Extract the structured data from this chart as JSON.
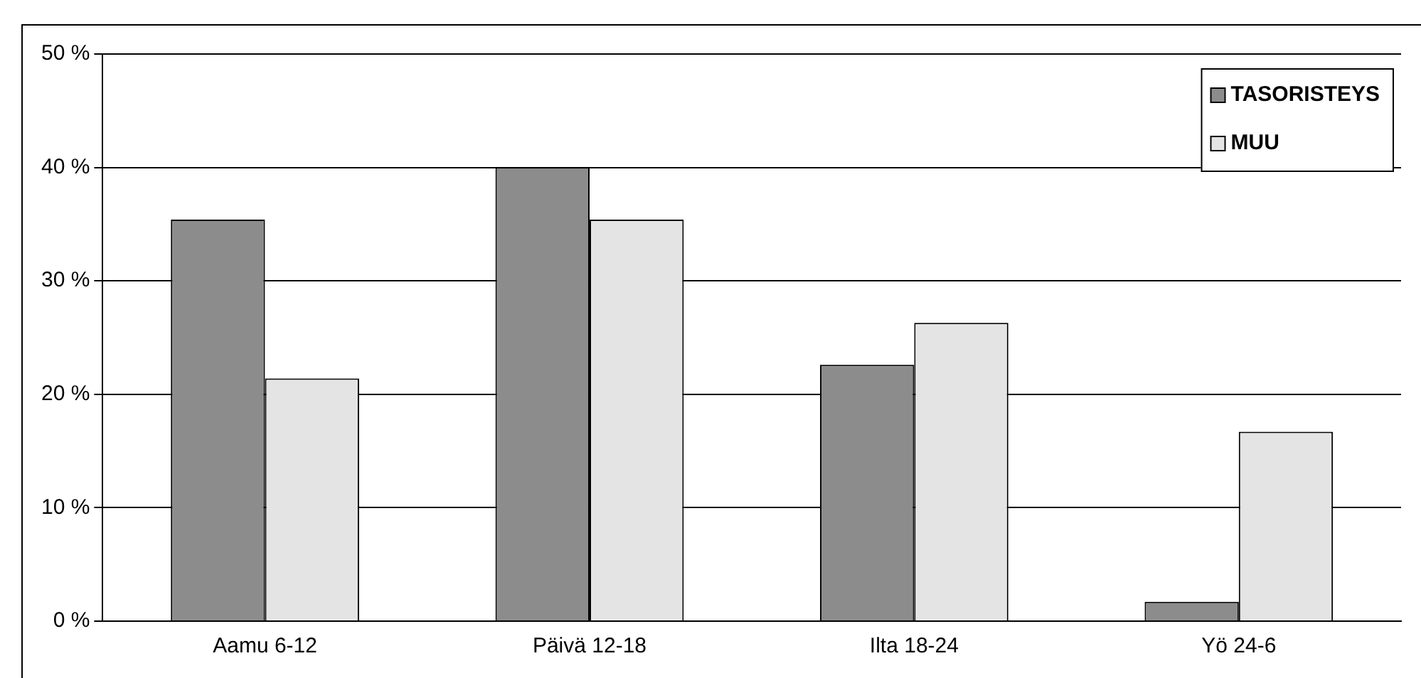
{
  "chart_data": {
    "type": "bar",
    "categories": [
      "Aamu 6-12",
      "Päivä 12-18",
      "Ilta 18-24",
      "Yö 24-6"
    ],
    "series": [
      {
        "name": "TASORISTEYS",
        "color": "#8c8c8c",
        "values": [
          35.4,
          40.0,
          22.6,
          1.7
        ]
      },
      {
        "name": "MUU",
        "color": "#e4e4e4",
        "values": [
          21.4,
          35.4,
          26.3,
          16.7
        ]
      }
    ],
    "ylim": [
      0,
      50
    ],
    "yticks": [
      {
        "value": 0,
        "label": "0 %"
      },
      {
        "value": 10,
        "label": "10 %"
      },
      {
        "value": 20,
        "label": "20 %"
      },
      {
        "value": 30,
        "label": "30 %"
      },
      {
        "value": 40,
        "label": "40 %"
      },
      {
        "value": 50,
        "label": "50 %"
      }
    ],
    "grid": "y",
    "legend": "top right"
  }
}
